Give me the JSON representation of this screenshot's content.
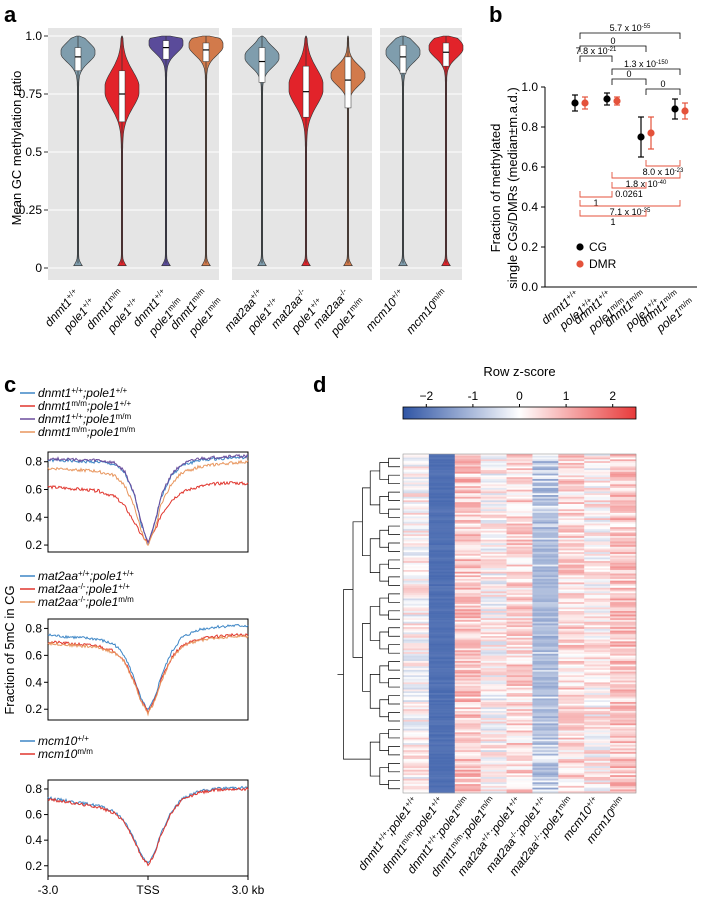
{
  "panels": {
    "a": "a",
    "b": "b",
    "c": "c",
    "d": "d"
  },
  "colors": {
    "blue_gray": "#7f9dad",
    "red": "#e2232a",
    "purple": "#5a4b9a",
    "orange": "#d27a4b",
    "cg": "#000000",
    "dmr": "#e4523b",
    "line_blue": "#3d86c6",
    "line_red": "#e0352d",
    "line_purple": "#6a4c9c",
    "line_orange": "#e8965e",
    "panel_bg": "#e5e5e5",
    "heat_low": "#2f55a5",
    "heat_mid": "#ffffff",
    "heat_high": "#e83a3a"
  },
  "genotype_label_parts": {
    "a_groups": [
      [
        [
          [
            "dnmt1",
            "+/+"
          ],
          [
            "pole1",
            "+/+"
          ]
        ],
        [
          [
            "dnmt1",
            "m/m"
          ],
          [
            "pole1",
            "+/+"
          ]
        ],
        [
          [
            "dnmt1",
            "+/+"
          ],
          [
            "pole1",
            "m/m"
          ]
        ],
        [
          [
            "dnmt1",
            "m/m"
          ],
          [
            "pole1",
            "m/m"
          ]
        ]
      ],
      [
        [
          [
            "mat2aa",
            "+/+"
          ],
          [
            "pole1",
            "+/+"
          ]
        ],
        [
          [
            "mat2aa",
            "-/-"
          ],
          [
            "pole1",
            "+/+"
          ]
        ],
        [
          [
            "mat2aa",
            "-/-"
          ],
          [
            "pole1",
            "m/m"
          ]
        ]
      ],
      [
        [
          [
            "mcm10",
            "+/+"
          ]
        ],
        [
          [
            "mcm10",
            "m/m"
          ]
        ]
      ]
    ],
    "b": [
      [
        [
          "dnmt1",
          "+/+"
        ],
        [
          "pole1",
          "+/+"
        ]
      ],
      [
        [
          "dnmt1",
          "+/+"
        ],
        [
          "pole1",
          "m/m"
        ]
      ],
      [
        [
          "dnmt1",
          "m/m"
        ],
        [
          "pole1",
          "+/+"
        ]
      ],
      [
        [
          "dnmt1",
          "m/m"
        ],
        [
          "pole1",
          "m/m"
        ]
      ]
    ],
    "d": [
      [
        [
          "dnmt1",
          "+/+"
        ],
        [
          ";pole1",
          "+/+"
        ]
      ],
      [
        [
          "dnmt1",
          "m/m"
        ],
        [
          ";pole1",
          "+/+"
        ]
      ],
      [
        [
          "dnmt1",
          "+/+"
        ],
        [
          ";pole1",
          "m/m"
        ]
      ],
      [
        [
          "dnmt1",
          "m/m"
        ],
        [
          ";pole1",
          "m/m"
        ]
      ],
      [
        [
          "mat2aa",
          "+/+"
        ],
        [
          ";pole1",
          "+/+"
        ]
      ],
      [
        [
          "mat2aa",
          "-/-"
        ],
        [
          ";pole1",
          "+/+"
        ]
      ],
      [
        [
          "mat2aa",
          "-/-"
        ],
        [
          ";pole1",
          "m/m"
        ]
      ],
      [
        [
          "mcm10",
          "+/+"
        ]
      ],
      [
        [
          "mcm10",
          "m/m"
        ]
      ]
    ]
  },
  "chart_data": [
    {
      "panel": "a",
      "type": "violin",
      "ylabel": "Mean GC methylation ratio",
      "ylim": [
        0,
        1
      ],
      "yticks": [
        "0",
        "0.25",
        "0.5",
        "0.75",
        "1.0"
      ],
      "ytick_values": [
        0,
        0.25,
        0.5,
        0.75,
        1.0
      ],
      "groups": [
        {
          "categories": [
            "dnmt1+/+;pole1+/+",
            "dnmt1m/m;pole1+/+",
            "dnmt1+/+;pole1m/m",
            "dnmt1m/m;pole1m/m"
          ],
          "medians": [
            0.91,
            0.75,
            0.95,
            0.94
          ],
          "q1": [
            0.85,
            0.63,
            0.9,
            0.89
          ],
          "q3": [
            0.95,
            0.85,
            0.98,
            0.97
          ],
          "colors": [
            "#7f9dad",
            "#e2232a",
            "#5a4b9a",
            "#d27a4b"
          ]
        },
        {
          "categories": [
            "mat2aa+/+;pole1+/+",
            "mat2aa-/-;pole1+/+",
            "mat2aa-/-;pole1m/m"
          ],
          "medians": [
            0.89,
            0.76,
            0.81
          ],
          "q1": [
            0.8,
            0.65,
            0.69
          ],
          "q3": [
            0.95,
            0.87,
            0.91
          ],
          "colors": [
            "#7f9dad",
            "#e2232a",
            "#d27a4b"
          ]
        },
        {
          "categories": [
            "mcm10+/+",
            "mcm10m/m"
          ],
          "medians": [
            0.91,
            0.93
          ],
          "q1": [
            0.84,
            0.87
          ],
          "q3": [
            0.96,
            0.97
          ],
          "colors": [
            "#7f9dad",
            "#e2232a"
          ]
        }
      ]
    },
    {
      "panel": "b",
      "type": "scatter",
      "ylabel_lines": [
        "Fraction of methylated",
        "single CGs/DMRs (median±m.a.d.)"
      ],
      "ylim": [
        0,
        1.0
      ],
      "yticks": [
        "0.0",
        "0.2",
        "0.4",
        "0.6",
        "0.8",
        "1.0"
      ],
      "ytick_values": [
        0,
        0.2,
        0.4,
        0.6,
        0.8,
        1.0
      ],
      "categories": [
        "dnmt1+/+;pole1+/+",
        "dnmt1+/+;pole1m/m",
        "dnmt1m/m;pole1+/+",
        "dnmt1m/m;pole1m/m"
      ],
      "series": [
        {
          "name": "CG",
          "values": [
            0.92,
            0.94,
            0.75,
            0.89
          ],
          "err": [
            0.04,
            0.03,
            0.1,
            0.05
          ],
          "color": "#000000"
        },
        {
          "name": "DMR",
          "values": [
            0.92,
            0.93,
            0.77,
            0.88
          ],
          "err": [
            0.03,
            0.02,
            0.08,
            0.04
          ],
          "color": "#e4523b"
        }
      ],
      "comparisons_black": [
        {
          "pair": [
            1,
            4
          ],
          "label": "5.7 x 10",
          "exp": "-55"
        },
        {
          "pair": [
            1,
            3
          ],
          "label": "0",
          "exp": ""
        },
        {
          "pair": [
            1,
            2
          ],
          "label": "7.8 x 10",
          "exp": "-21"
        },
        {
          "pair": [
            2,
            4
          ],
          "label": "1.3 x 10",
          "exp": "-150"
        },
        {
          "pair": [
            2,
            3
          ],
          "label": "0",
          "exp": ""
        },
        {
          "pair": [
            3,
            4
          ],
          "label": "0",
          "exp": ""
        }
      ],
      "comparisons_red": [
        {
          "pair": [
            3,
            4
          ],
          "label": "8.0 x 10",
          "exp": "-23"
        },
        {
          "pair": [
            2,
            4
          ],
          "label": "1.8 x 10",
          "exp": "-40"
        },
        {
          "pair": [
            2,
            3
          ],
          "label": "0.0261",
          "exp": ""
        },
        {
          "pair": [
            1,
            2
          ],
          "label": "1",
          "exp": ""
        },
        {
          "pair": [
            1,
            4
          ],
          "label": "7.1 x 10",
          "exp": "-35"
        },
        {
          "pair": [
            1,
            3
          ],
          "label": "1",
          "exp": ""
        }
      ]
    },
    {
      "panel": "c",
      "type": "line",
      "ylabel": "Fraction of 5mC in CG",
      "xlim": [
        -3.0,
        3.0
      ],
      "xticks": [
        "-3.0",
        "TSS",
        "3.0 kb"
      ],
      "subplots": [
        {
          "yticks": [
            "0.2",
            "0.4",
            "0.6",
            "0.8"
          ],
          "ylim": [
            0.15,
            0.87
          ],
          "legend": [
            [
              [
                "dnmt1",
                "+/+"
              ],
              [
                ";pole1",
                "+/+"
              ]
            ],
            [
              [
                "dnmt1",
                "m/m"
              ],
              [
                ";pole1",
                "+/+"
              ]
            ],
            [
              [
                "dnmt1",
                "+/+"
              ],
              [
                ";pole1",
                "m/m"
              ]
            ],
            [
              [
                "dnmt1",
                "m/m"
              ],
              [
                ";pole1",
                "m/m"
              ]
            ]
          ],
          "series": [
            {
              "x": [
                -3,
                -2.5,
                -2,
                -1.5,
                -1,
                -0.7,
                -0.4,
                -0.2,
                0,
                0.2,
                0.4,
                0.7,
                1,
                1.5,
                2,
                2.5,
                3
              ],
              "y": [
                0.81,
                0.81,
                0.8,
                0.8,
                0.78,
                0.72,
                0.55,
                0.35,
                0.22,
                0.35,
                0.55,
                0.7,
                0.77,
                0.81,
                0.82,
                0.83,
                0.83
              ],
              "color": "#3d86c6"
            },
            {
              "x": [
                -3,
                -2.5,
                -2,
                -1.5,
                -1,
                -0.7,
                -0.4,
                -0.2,
                0,
                0.2,
                0.4,
                0.7,
                1,
                1.5,
                2,
                2.5,
                3
              ],
              "y": [
                0.62,
                0.61,
                0.6,
                0.59,
                0.55,
                0.48,
                0.36,
                0.27,
                0.22,
                0.3,
                0.42,
                0.52,
                0.58,
                0.62,
                0.64,
                0.65,
                0.64
              ],
              "color": "#e0352d"
            },
            {
              "x": [
                -3,
                -2.5,
                -2,
                -1.5,
                -1,
                -0.7,
                -0.4,
                -0.2,
                0,
                0.2,
                0.4,
                0.7,
                1,
                1.5,
                2,
                2.5,
                3
              ],
              "y": [
                0.82,
                0.82,
                0.81,
                0.81,
                0.79,
                0.73,
                0.56,
                0.36,
                0.22,
                0.36,
                0.56,
                0.71,
                0.78,
                0.82,
                0.83,
                0.84,
                0.84
              ],
              "color": "#6a4c9c"
            },
            {
              "x": [
                -3,
                -2.5,
                -2,
                -1.5,
                -1,
                -0.7,
                -0.4,
                -0.2,
                0,
                0.2,
                0.4,
                0.7,
                1,
                1.5,
                2,
                2.5,
                3
              ],
              "y": [
                0.75,
                0.75,
                0.74,
                0.73,
                0.7,
                0.63,
                0.47,
                0.3,
                0.19,
                0.31,
                0.5,
                0.64,
                0.72,
                0.76,
                0.78,
                0.79,
                0.8
              ],
              "color": "#e8965e"
            }
          ]
        },
        {
          "yticks": [
            "0.2",
            "0.4",
            "0.6",
            "0.8"
          ],
          "ylim": [
            0.12,
            0.87
          ],
          "legend": [
            [
              [
                "mat2aa",
                "+/+"
              ],
              [
                ";pole1",
                "+/+"
              ]
            ],
            [
              [
                "mat2aa",
                "-/-"
              ],
              [
                ";pole1",
                "+/+"
              ]
            ],
            [
              [
                "mat2aa",
                "-/-"
              ],
              [
                ";pole1",
                "m/m"
              ]
            ]
          ],
          "series": [
            {
              "x": [
                -3,
                -2.5,
                -2,
                -1.5,
                -1,
                -0.7,
                -0.4,
                -0.2,
                0,
                0.2,
                0.4,
                0.7,
                1,
                1.5,
                2,
                2.5,
                3
              ],
              "y": [
                0.75,
                0.74,
                0.73,
                0.72,
                0.68,
                0.6,
                0.42,
                0.27,
                0.19,
                0.28,
                0.45,
                0.62,
                0.73,
                0.79,
                0.81,
                0.82,
                0.82
              ],
              "color": "#3d86c6"
            },
            {
              "x": [
                -3,
                -2.5,
                -2,
                -1.5,
                -1,
                -0.7,
                -0.4,
                -0.2,
                0,
                0.2,
                0.4,
                0.7,
                1,
                1.5,
                2,
                2.5,
                3
              ],
              "y": [
                0.7,
                0.69,
                0.68,
                0.67,
                0.63,
                0.56,
                0.4,
                0.26,
                0.18,
                0.27,
                0.42,
                0.58,
                0.67,
                0.72,
                0.74,
                0.75,
                0.75
              ],
              "color": "#e0352d"
            },
            {
              "x": [
                -3,
                -2.5,
                -2,
                -1.5,
                -1,
                -0.7,
                -0.4,
                -0.2,
                0,
                0.2,
                0.4,
                0.7,
                1,
                1.5,
                2,
                2.5,
                3
              ],
              "y": [
                0.69,
                0.68,
                0.67,
                0.66,
                0.62,
                0.55,
                0.39,
                0.25,
                0.17,
                0.26,
                0.41,
                0.57,
                0.66,
                0.71,
                0.73,
                0.74,
                0.74
              ],
              "color": "#e8965e"
            }
          ]
        },
        {
          "yticks": [
            "0.2",
            "0.4",
            "0.6",
            "0.8"
          ],
          "ylim": [
            0.12,
            0.87
          ],
          "legend": [
            [
              [
                "mcm10",
                "+/+"
              ]
            ],
            [
              [
                "mcm10",
                "m/m"
              ]
            ]
          ],
          "series": [
            {
              "x": [
                -3,
                -2.5,
                -2,
                -1.5,
                -1,
                -0.7,
                -0.4,
                -0.2,
                0,
                0.2,
                0.4,
                0.7,
                1,
                1.5,
                2,
                2.5,
                3
              ],
              "y": [
                0.73,
                0.71,
                0.69,
                0.67,
                0.62,
                0.55,
                0.4,
                0.28,
                0.22,
                0.3,
                0.46,
                0.62,
                0.72,
                0.78,
                0.8,
                0.81,
                0.81
              ],
              "color": "#3d86c6"
            },
            {
              "x": [
                -3,
                -2.5,
                -2,
                -1.5,
                -1,
                -0.7,
                -0.4,
                -0.2,
                0,
                0.2,
                0.4,
                0.7,
                1,
                1.5,
                2,
                2.5,
                3
              ],
              "y": [
                0.72,
                0.7,
                0.68,
                0.66,
                0.61,
                0.54,
                0.39,
                0.27,
                0.21,
                0.29,
                0.45,
                0.61,
                0.71,
                0.77,
                0.79,
                0.8,
                0.8
              ],
              "color": "#e0352d"
            }
          ]
        }
      ]
    },
    {
      "panel": "d",
      "type": "heatmap",
      "colorbar_title": "Row z-score",
      "colorbar_ticks": [
        "−2",
        "-1",
        "0",
        "1",
        "2"
      ],
      "colorbar_values": [
        -2,
        -1,
        0,
        1,
        2
      ],
      "colorbar_range": [
        -2.5,
        2.5
      ],
      "columns": [
        "dnmt1+/+;pole1+/+",
        "dnmt1m/m;pole1+/+",
        "dnmt1+/+;pole1m/m",
        "dnmt1m/m;pole1m/m",
        "mat2aa+/+;pole1+/+",
        "mat2aa-/-;pole1+/+",
        "mat2aa-/-;pole1m/m",
        "mcm10+/+",
        "mcm10m/m"
      ],
      "column_mean_z": [
        0.1,
        -2.1,
        0.7,
        0.1,
        0.5,
        -0.7,
        0.5,
        0.2,
        0.7
      ],
      "n_rows": 190
    }
  ]
}
